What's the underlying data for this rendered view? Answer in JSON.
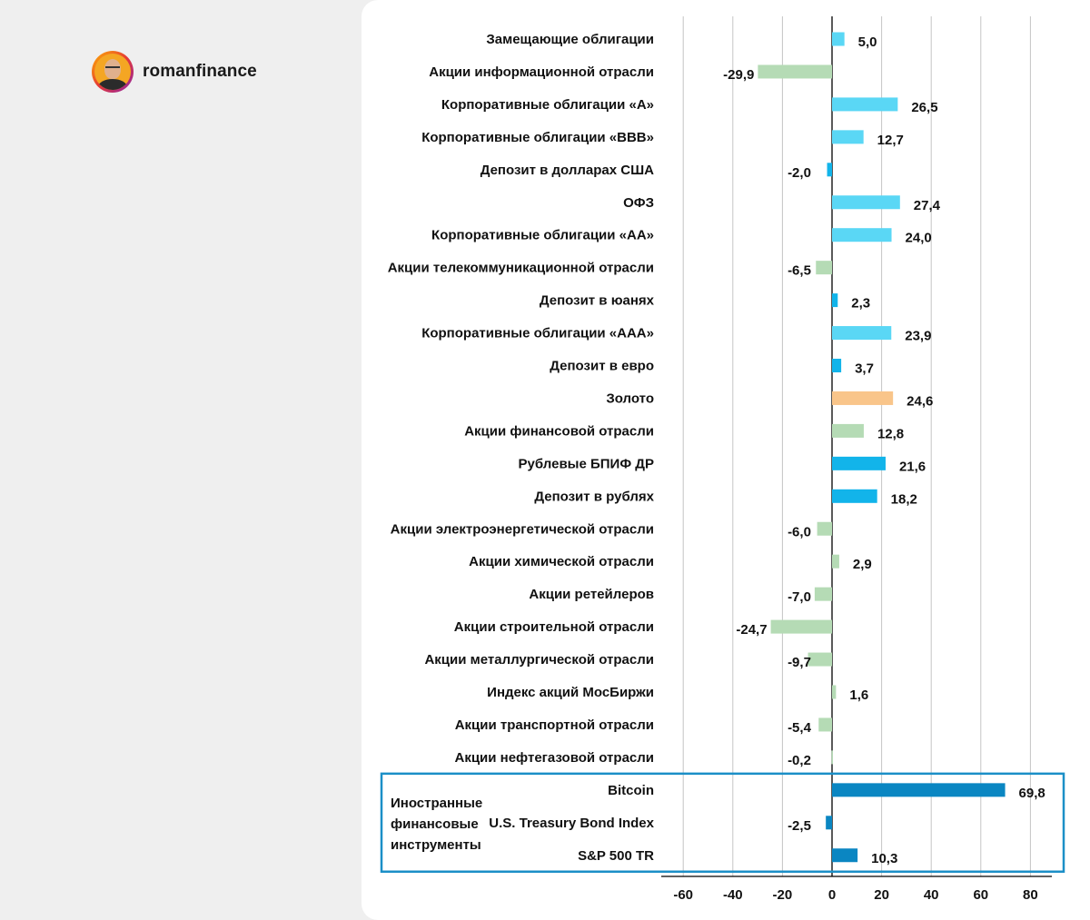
{
  "brand": {
    "name": "romanfinance"
  },
  "chart_data": {
    "type": "bar",
    "orientation": "horizontal",
    "categories": [
      "Замещающие облигации",
      "Акции информационной отрасли",
      "Корпоративные облигации «А»",
      "Корпоративные облигации «BBB»",
      "Депозит в долларах США",
      "ОФЗ",
      "Корпоративные облигации «АА»",
      "Акции телекоммуникационной отрасли",
      "Депозит в юанях",
      "Корпоративные облигации «ААА»",
      "Депозит в евро",
      "Золото",
      "Акции финансовой отрасли",
      "Рублевые БПИФ ДР",
      "Депозит в рублях",
      "Акции электроэнергетической отрасли",
      "Акции химической отрасли",
      "Акции ретейлеров",
      "Акции строительной отрасли",
      "Акции металлургической отрасли",
      "Индекс акций МосБиржи",
      "Акции транспортной отрасли",
      "Акции нефтегазовой отрасли",
      "Bitcoin",
      "U.S. Treasury Bond Index",
      "S&P 500 TR"
    ],
    "values": [
      5.0,
      -29.9,
      26.5,
      12.7,
      -2.0,
      27.4,
      24.0,
      -6.5,
      2.3,
      23.9,
      3.7,
      24.6,
      12.8,
      21.6,
      18.2,
      -6.0,
      2.9,
      -7.0,
      -24.7,
      -9.7,
      1.6,
      -5.4,
      -0.2,
      69.8,
      -2.5,
      10.3
    ],
    "value_labels": [
      "5,0",
      "-29,9",
      "26,5",
      "12,7",
      "-2,0",
      "27,4",
      "24,0",
      "-6,5",
      "2,3",
      "23,9",
      "3,7",
      "24,6",
      "12,8",
      "21,6",
      "18,2",
      "-6,0",
      "2,9",
      "-7,0",
      "-24,7",
      "-9,7",
      "1,6",
      "-5,4",
      "-0,2",
      "69,8",
      "-2,5",
      "10,3"
    ],
    "bar_colors": [
      "#5ad7f5",
      "#b5dbb5",
      "#5ad7f5",
      "#5ad7f5",
      "#12b4ea",
      "#5ad7f5",
      "#5ad7f5",
      "#b5dbb5",
      "#12b4ea",
      "#5ad7f5",
      "#12b4ea",
      "#f9c58a",
      "#b5dbb5",
      "#12b4ea",
      "#12b4ea",
      "#b5dbb5",
      "#b5dbb5",
      "#b5dbb5",
      "#b5dbb5",
      "#b5dbb5",
      "#b5dbb5",
      "#b5dbb5",
      "#b5dbb5",
      "#0a86c2",
      "#0a86c2",
      "#0a86c2"
    ],
    "xlim": [
      -60,
      80
    ],
    "xticks": [
      -60,
      -40,
      -20,
      0,
      20,
      40,
      60,
      80
    ],
    "grid": "vertical",
    "group": {
      "label_lines": [
        "Иностранные",
        "финансовые",
        "инструменты"
      ],
      "categories": [
        "Bitcoin",
        "U.S. Treasury Bond Index",
        "S&P 500 TR"
      ],
      "box_color": "#1b8fc7"
    },
    "title": "",
    "xlabel": "",
    "ylabel": ""
  }
}
